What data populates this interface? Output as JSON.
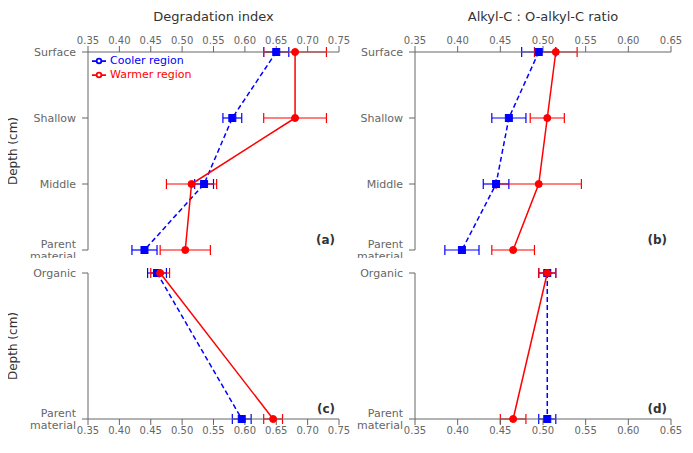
{
  "chart_data": [
    {
      "type": "line",
      "title": "Degradation index",
      "y_label": "Depth (cm)",
      "annotation": "(a)",
      "categories": [
        "Surface",
        "Shallow",
        "Middle",
        "Parent\nmaterial"
      ],
      "series": [
        {
          "name": "Cooler region",
          "color": "#0000FF",
          "marker": "square",
          "line_style": "dashed",
          "values": [
            0.65,
            0.58,
            0.535,
            0.44
          ],
          "errors": [
            0.02,
            0.015,
            0.015,
            0.02
          ]
        },
        {
          "name": "Warmer region",
          "color": "#FF0000",
          "marker": "circle",
          "line_style": "solid",
          "values": [
            0.68,
            0.68,
            0.515,
            0.505
          ],
          "errors": [
            0.05,
            0.05,
            0.04,
            0.04
          ]
        }
      ],
      "xlim": [
        0.35,
        0.75
      ],
      "xticks": [
        0.35,
        {
          "value": 0.4,
          "label": "0.40"
        },
        0.45,
        {
          "value": 0.5,
          "label": "0.50"
        },
        0.55,
        {
          "value": 0.6,
          "label": "0.60"
        },
        0.65,
        {
          "value": 0.7,
          "label": "0.70"
        },
        0.75
      ],
      "legend": "upper left",
      "grid": false
    },
    {
      "type": "line",
      "title": "Alkyl-C : O-alkyl-C ratio",
      "annotation": "(b)",
      "categories": [
        "Surface",
        "Shallow",
        "Middle",
        "Parent\nmaterial"
      ],
      "series": [
        {
          "name": "Cooler region",
          "color": "#0000FF",
          "marker": "square",
          "line_style": "dashed",
          "values": [
            0.495,
            0.46,
            0.445,
            0.405
          ],
          "errors": [
            0.02,
            0.02,
            0.015,
            0.02
          ]
        },
        {
          "name": "Warmer region",
          "color": "#FF0000",
          "marker": "circle",
          "line_style": "solid",
          "values": [
            0.515,
            0.505,
            0.495,
            0.465
          ],
          "errors": [
            0.025,
            0.02,
            0.05,
            0.025
          ]
        }
      ],
      "xlim": [
        0.35,
        0.65
      ],
      "xticks": [
        0.35,
        {
          "value": 0.4,
          "label": "0.40"
        },
        0.45,
        {
          "value": 0.5,
          "label": "0.50"
        },
        0.55,
        {
          "value": 0.6,
          "label": "0.60"
        },
        0.65
      ],
      "grid": false
    },
    {
      "type": "line",
      "y_label": "Depth (cm)",
      "annotation": "(c)",
      "categories": [
        "Organic",
        "Parent\nmaterial"
      ],
      "series": [
        {
          "name": "Cooler region",
          "color": "#0000FF",
          "marker": "square",
          "line_style": "dashed",
          "values": [
            0.46,
            0.595
          ],
          "errors": [
            0.015,
            0.015
          ]
        },
        {
          "name": "Warmer region",
          "color": "#FF0000",
          "marker": "circle",
          "line_style": "solid",
          "values": [
            0.465,
            0.645
          ],
          "errors": [
            0.015,
            0.015
          ]
        }
      ],
      "xlim": [
        0.35,
        0.75
      ],
      "xticks": [
        0.35,
        {
          "value": 0.4,
          "label": "0.40"
        },
        0.45,
        {
          "value": 0.5,
          "label": "0.50"
        },
        0.55,
        {
          "value": 0.6,
          "label": "0.60"
        },
        0.65,
        {
          "value": 0.7,
          "label": "0.70"
        },
        0.75
      ],
      "grid": false
    },
    {
      "type": "line",
      "annotation": "(d)",
      "categories": [
        "Organic",
        "Parent\nmaterial"
      ],
      "series": [
        {
          "name": "Cooler region",
          "color": "#0000FF",
          "marker": "square",
          "line_style": "dashed",
          "values": [
            0.505,
            0.505
          ],
          "errors": [
            0.01,
            0.01
          ]
        },
        {
          "name": "Warmer region",
          "color": "#FF0000",
          "marker": "circle",
          "line_style": "solid",
          "values": [
            0.505,
            0.465
          ],
          "errors": [
            0.01,
            0.015
          ]
        }
      ],
      "xlim": [
        0.35,
        0.65
      ],
      "xticks": [
        0.35,
        {
          "value": 0.4,
          "label": "0.40"
        },
        0.45,
        {
          "value": 0.5,
          "label": "0.50"
        },
        0.55,
        {
          "value": 0.6,
          "label": "0.60"
        },
        0.65
      ],
      "grid": false
    }
  ]
}
